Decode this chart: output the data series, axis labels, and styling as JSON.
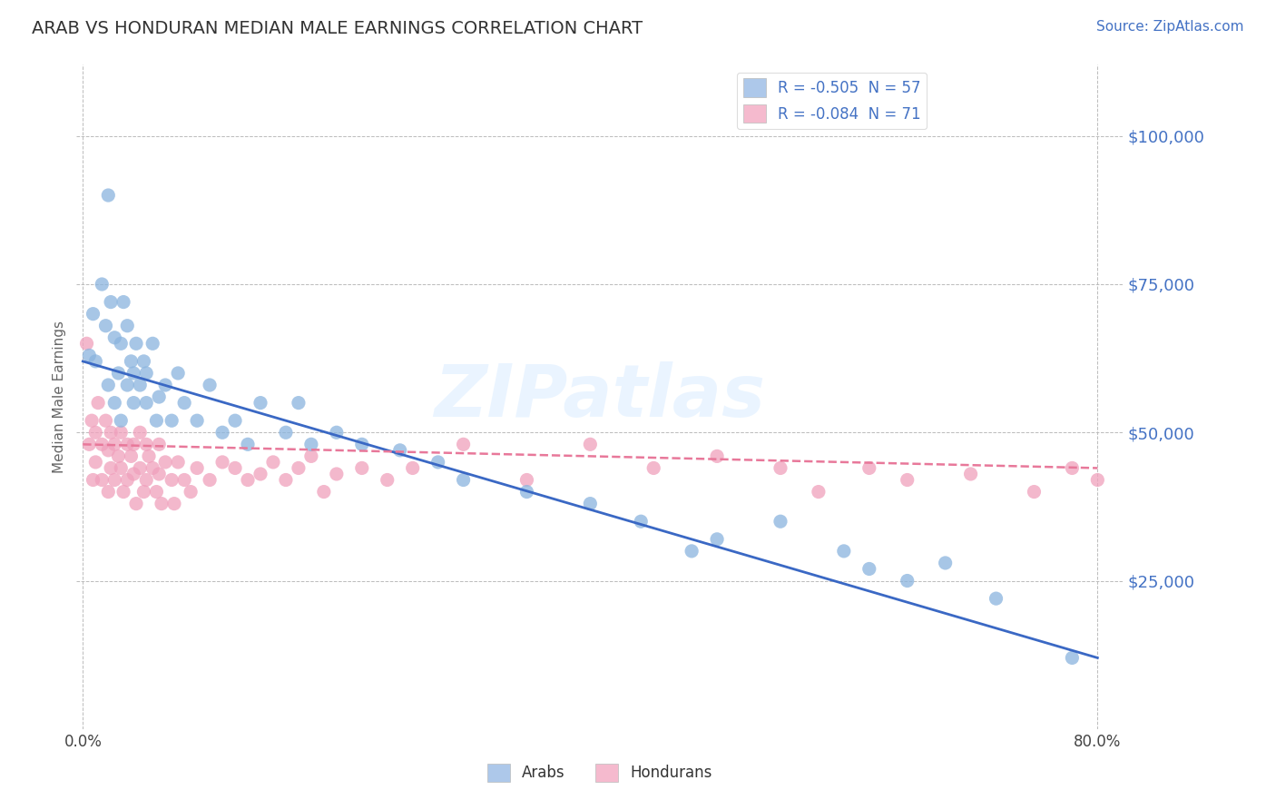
{
  "title": "ARAB VS HONDURAN MEDIAN MALE EARNINGS CORRELATION CHART",
  "source_text": "Source: ZipAtlas.com",
  "ylabel": "Median Male Earnings",
  "xlim": [
    -0.005,
    0.82
  ],
  "ylim": [
    0,
    112000
  ],
  "yticks": [
    0,
    25000,
    50000,
    75000,
    100000
  ],
  "ytick_labels": [
    "",
    "$25,000",
    "$50,000",
    "$75,000",
    "$100,000"
  ],
  "xtick_positions": [
    0.0,
    0.8
  ],
  "xtick_labels": [
    "0.0%",
    "80.0%"
  ],
  "legend_entries": [
    {
      "label": "R = -0.505  N = 57",
      "color": "#adc8ea"
    },
    {
      "label": "R = -0.084  N = 71",
      "color": "#f5bace"
    }
  ],
  "legend_bottom_entries": [
    {
      "label": "Arabs",
      "color": "#adc8ea"
    },
    {
      "label": "Hondurans",
      "color": "#f5bace"
    }
  ],
  "arab_color": "#8ab4de",
  "honduran_color": "#f0a0bc",
  "arab_line_color": "#3a68c4",
  "honduran_line_color": "#e8789a",
  "arab_line_y0": 62000,
  "arab_line_y1": 12000,
  "honduran_line_y0": 48000,
  "honduran_line_y1": 44000,
  "watermark": "ZIPatlas",
  "background_color": "#ffffff",
  "grid_color": "#bbbbbb",
  "ylabel_color": "#666666",
  "ytick_color": "#4472c4",
  "title_color": "#333333",
  "arab_scatter_x": [
    0.005,
    0.008,
    0.01,
    0.015,
    0.018,
    0.02,
    0.02,
    0.022,
    0.025,
    0.025,
    0.028,
    0.03,
    0.03,
    0.032,
    0.035,
    0.035,
    0.038,
    0.04,
    0.04,
    0.042,
    0.045,
    0.048,
    0.05,
    0.05,
    0.055,
    0.058,
    0.06,
    0.065,
    0.07,
    0.075,
    0.08,
    0.09,
    0.1,
    0.11,
    0.12,
    0.13,
    0.14,
    0.16,
    0.17,
    0.18,
    0.2,
    0.22,
    0.25,
    0.28,
    0.3,
    0.35,
    0.4,
    0.44,
    0.48,
    0.5,
    0.55,
    0.6,
    0.62,
    0.65,
    0.68,
    0.72,
    0.78
  ],
  "arab_scatter_y": [
    63000,
    70000,
    62000,
    75000,
    68000,
    90000,
    58000,
    72000,
    66000,
    55000,
    60000,
    65000,
    52000,
    72000,
    68000,
    58000,
    62000,
    60000,
    55000,
    65000,
    58000,
    62000,
    55000,
    60000,
    65000,
    52000,
    56000,
    58000,
    52000,
    60000,
    55000,
    52000,
    58000,
    50000,
    52000,
    48000,
    55000,
    50000,
    55000,
    48000,
    50000,
    48000,
    47000,
    45000,
    42000,
    40000,
    38000,
    35000,
    30000,
    32000,
    35000,
    30000,
    27000,
    25000,
    28000,
    22000,
    12000
  ],
  "honduran_scatter_x": [
    0.003,
    0.005,
    0.007,
    0.008,
    0.01,
    0.01,
    0.012,
    0.015,
    0.015,
    0.018,
    0.02,
    0.02,
    0.022,
    0.022,
    0.025,
    0.025,
    0.028,
    0.03,
    0.03,
    0.032,
    0.035,
    0.035,
    0.038,
    0.04,
    0.04,
    0.042,
    0.045,
    0.045,
    0.048,
    0.05,
    0.05,
    0.052,
    0.055,
    0.058,
    0.06,
    0.06,
    0.062,
    0.065,
    0.07,
    0.072,
    0.075,
    0.08,
    0.085,
    0.09,
    0.1,
    0.11,
    0.12,
    0.13,
    0.14,
    0.15,
    0.16,
    0.17,
    0.18,
    0.19,
    0.2,
    0.22,
    0.24,
    0.26,
    0.3,
    0.35,
    0.4,
    0.45,
    0.5,
    0.55,
    0.58,
    0.62,
    0.65,
    0.7,
    0.75,
    0.78,
    0.8
  ],
  "honduran_scatter_y": [
    65000,
    48000,
    52000,
    42000,
    50000,
    45000,
    55000,
    48000,
    42000,
    52000,
    47000,
    40000,
    50000,
    44000,
    48000,
    42000,
    46000,
    50000,
    44000,
    40000,
    48000,
    42000,
    46000,
    48000,
    43000,
    38000,
    50000,
    44000,
    40000,
    48000,
    42000,
    46000,
    44000,
    40000,
    48000,
    43000,
    38000,
    45000,
    42000,
    38000,
    45000,
    42000,
    40000,
    44000,
    42000,
    45000,
    44000,
    42000,
    43000,
    45000,
    42000,
    44000,
    46000,
    40000,
    43000,
    44000,
    42000,
    44000,
    48000,
    42000,
    48000,
    44000,
    46000,
    44000,
    40000,
    44000,
    42000,
    43000,
    40000,
    44000,
    42000
  ]
}
